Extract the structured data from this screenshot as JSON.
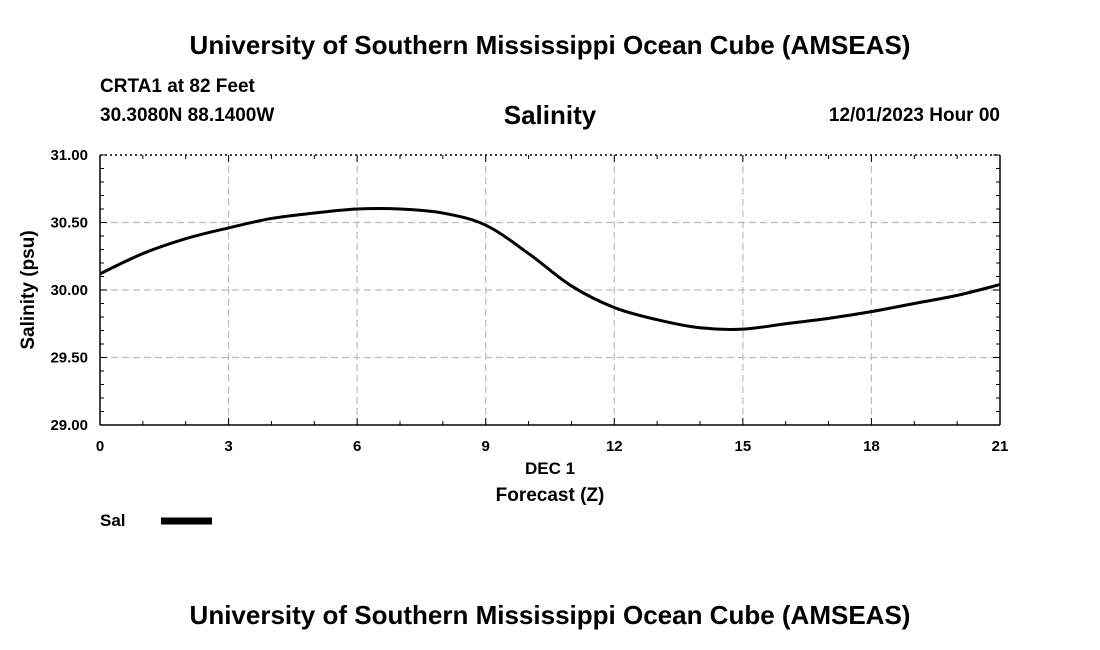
{
  "header": {
    "title": "University of Southern Mississippi Ocean Cube (AMSEAS)",
    "station": "CRTA1 at 82 Feet",
    "coords": "30.3080N  88.1400W",
    "product": "Salinity",
    "datetime": "12/01/2023 Hour 00"
  },
  "footer": {
    "title": "University of Southern Mississippi Ocean Cube (AMSEAS)"
  },
  "legend": {
    "label": "Sal"
  },
  "chart_data": {
    "type": "line",
    "title": "Salinity",
    "xlabel": "Forecast (Z)",
    "xlabel_date": "DEC 1",
    "ylabel": "Salinity (psu)",
    "xlim": [
      0,
      21
    ],
    "ylim": [
      29.0,
      31.0
    ],
    "x_ticks": [
      0,
      3,
      6,
      9,
      12,
      15,
      18,
      21
    ],
    "x_tick_labels": [
      "0",
      "3",
      "6",
      "9",
      "12",
      "15",
      "18",
      "21"
    ],
    "y_ticks": [
      29.0,
      29.5,
      30.0,
      30.5,
      31.0
    ],
    "y_tick_labels": [
      "29.00",
      "29.50",
      "30.00",
      "30.50",
      "31.00"
    ],
    "grid": true,
    "series": [
      {
        "name": "Sal",
        "color": "#000000",
        "x": [
          0,
          1,
          2,
          3,
          4,
          5,
          6,
          7,
          8,
          9,
          10,
          11,
          12,
          13,
          14,
          15,
          16,
          17,
          18,
          19,
          20,
          21
        ],
        "y": [
          30.12,
          30.27,
          30.38,
          30.46,
          30.53,
          30.57,
          30.6,
          30.6,
          30.57,
          30.48,
          30.27,
          30.03,
          29.87,
          29.78,
          29.72,
          29.71,
          29.75,
          29.79,
          29.84,
          29.9,
          29.96,
          30.04
        ]
      }
    ]
  }
}
